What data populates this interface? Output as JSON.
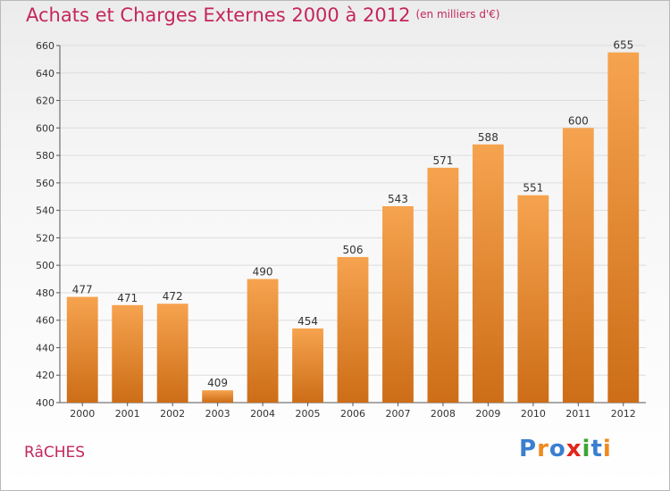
{
  "header": {
    "title": "Achats et Charges Externes 2000 à 2012",
    "subtitle": "(en milliers d'€)"
  },
  "footer": {
    "town": "RâCHES",
    "brand": "Proxiti",
    "brand_colors": [
      "#3a7fd0",
      "#f08a1e",
      "#3a7fd0",
      "#e0261b",
      "#3fa535",
      "#3a7fd0",
      "#f08a1e"
    ]
  },
  "colors": {
    "title": "#c4265e",
    "bar_light": "#f6a34f",
    "bar_dark": "#cd6d17",
    "grid": "#dcdcdc",
    "axis": "#555555",
    "label": "#333333"
  },
  "chart_data": {
    "type": "bar",
    "categories": [
      "2000",
      "2001",
      "2002",
      "2003",
      "2004",
      "2005",
      "2006",
      "2007",
      "2008",
      "2009",
      "2010",
      "2011",
      "2012"
    ],
    "values": [
      477,
      471,
      472,
      409,
      490,
      454,
      506,
      543,
      571,
      588,
      551,
      600,
      655
    ],
    "ylim": [
      400,
      660
    ],
    "yticks": [
      400,
      420,
      440,
      460,
      480,
      500,
      520,
      540,
      560,
      580,
      600,
      620,
      640,
      660
    ],
    "grid": true,
    "data_labels": true
  }
}
